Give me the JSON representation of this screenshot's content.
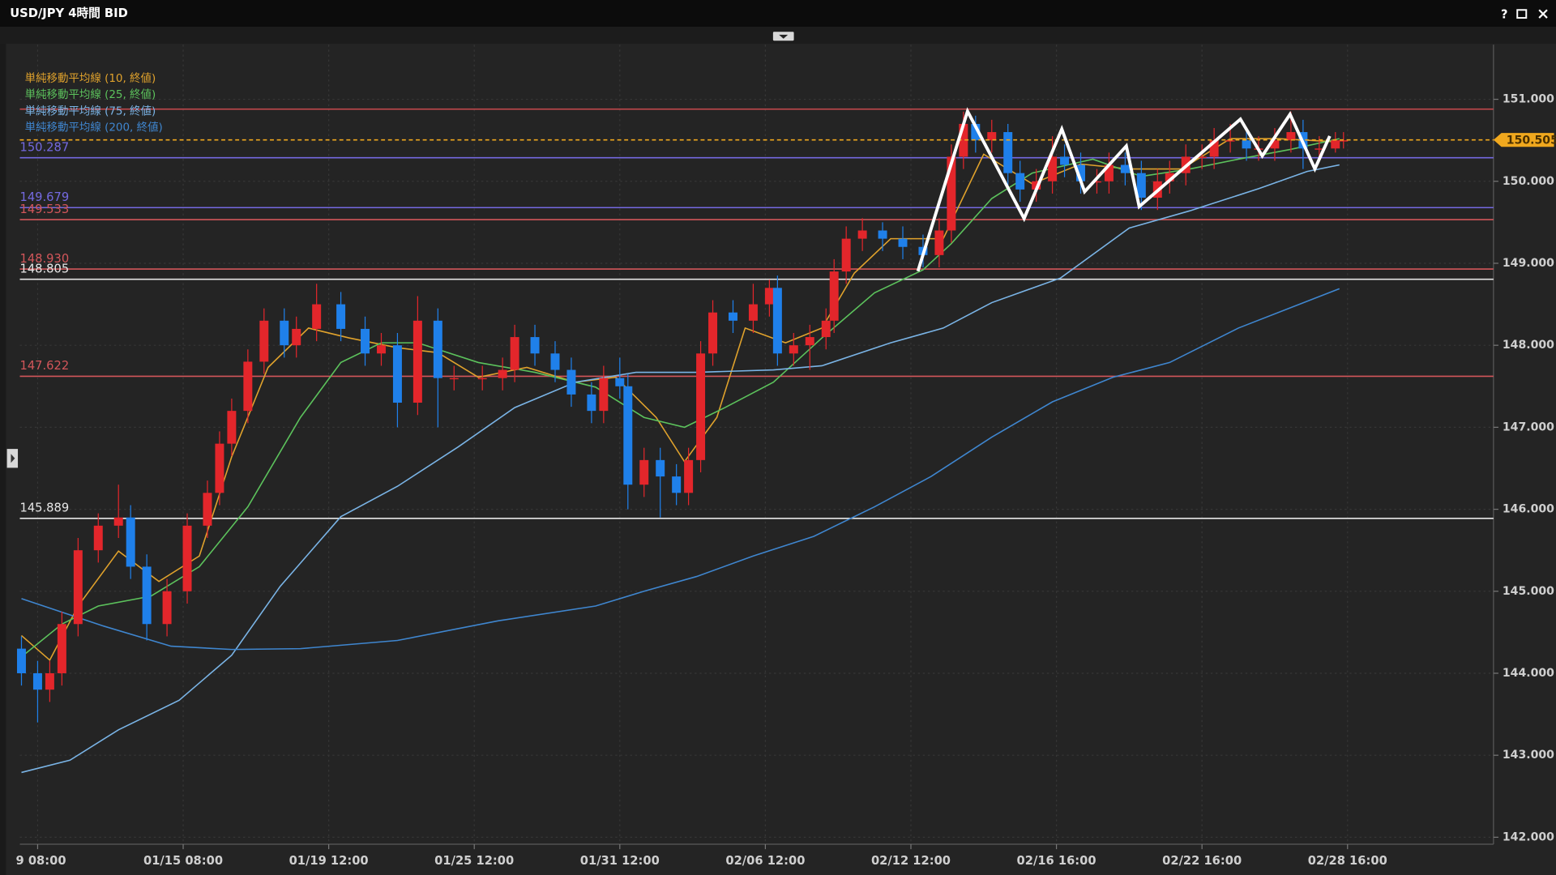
{
  "toolbar": {
    "help": "?"
  },
  "chart_data": {
    "type": "candlestick",
    "title": "USD/JPY 4時間 BID",
    "up_color": "#e3262b",
    "down_color": "#1f80ea",
    "grid": true,
    "xlim": [
      -0.4,
      364.1
    ],
    "ylim": [
      141.915,
      151.666
    ],
    "xticks": [
      {
        "value": 4,
        "label": "9 08:00"
      },
      {
        "value": 40,
        "label": "01/15 08:00"
      },
      {
        "value": 76,
        "label": "01/19 12:00"
      },
      {
        "value": 112,
        "label": "01/25 12:00"
      },
      {
        "value": 148,
        "label": "01/31 12:00"
      },
      {
        "value": 184,
        "label": "02/06 12:00"
      },
      {
        "value": 220,
        "label": "02/12 12:00"
      },
      {
        "value": 256,
        "label": "02/16 16:00"
      },
      {
        "value": 292,
        "label": "02/22 16:00"
      },
      {
        "value": 328,
        "label": "02/28 16:00"
      }
    ],
    "yticks": [
      {
        "value": 142,
        "label": "142.000"
      },
      {
        "value": 143,
        "label": "143.000"
      },
      {
        "value": 144,
        "label": "144.000"
      },
      {
        "value": 145,
        "label": "145.000"
      },
      {
        "value": 146,
        "label": "146.000"
      },
      {
        "value": 147,
        "label": "147.000"
      },
      {
        "value": 148,
        "label": "148.000"
      },
      {
        "value": 149,
        "label": "149.000"
      },
      {
        "value": 150,
        "label": "150.000"
      },
      {
        "value": 151,
        "label": "151.000"
      }
    ],
    "x": [
      0,
      4,
      7,
      10,
      14,
      19,
      24,
      27,
      31,
      36,
      41,
      46,
      49,
      52,
      56,
      60,
      65,
      68,
      73,
      79,
      85,
      89,
      93,
      98,
      103,
      107,
      114,
      119,
      122,
      127,
      132,
      136,
      141,
      144,
      148,
      150,
      154,
      158,
      162,
      165,
      168,
      171,
      176,
      181,
      185,
      187,
      191,
      195,
      199,
      201,
      204,
      208,
      213,
      218,
      223,
      227,
      230,
      233,
      236,
      240,
      244,
      247,
      251,
      255,
      258,
      262,
      266,
      269,
      273,
      277,
      281,
      284,
      288,
      292,
      295,
      299,
      303,
      306,
      310,
      314,
      317,
      321,
      325,
      327
    ],
    "open": [
      144.3,
      144.0,
      143.8,
      144.0,
      144.6,
      145.5,
      145.8,
      145.9,
      145.3,
      144.6,
      145.0,
      145.8,
      146.2,
      146.8,
      147.2,
      147.8,
      148.3,
      148.0,
      148.2,
      148.5,
      148.2,
      147.9,
      148.0,
      147.3,
      148.3,
      147.6,
      147.6,
      147.6,
      147.7,
      148.1,
      147.9,
      147.7,
      147.4,
      147.2,
      147.6,
      147.5,
      146.3,
      146.6,
      146.4,
      146.2,
      146.6,
      147.9,
      148.4,
      148.3,
      148.5,
      148.7,
      147.9,
      148.0,
      148.1,
      148.3,
      148.9,
      149.3,
      149.4,
      149.3,
      149.2,
      149.1,
      149.4,
      150.3,
      150.7,
      150.5,
      150.6,
      150.1,
      149.9,
      150.0,
      150.3,
      150.2,
      150.0,
      150.0,
      150.2,
      150.1,
      149.8,
      150.0,
      150.1,
      150.3,
      150.3,
      150.5,
      150.5,
      150.4,
      150.4,
      150.5,
      150.6,
      150.4,
      150.4,
      150.5
    ],
    "high": [
      144.45,
      144.15,
      144.15,
      144.75,
      145.65,
      145.95,
      146.3,
      146.05,
      145.45,
      145.15,
      145.95,
      146.35,
      146.95,
      147.35,
      147.95,
      148.45,
      148.45,
      148.35,
      148.75,
      148.65,
      148.35,
      148.15,
      148.15,
      148.6,
      148.45,
      147.75,
      147.75,
      147.85,
      148.25,
      148.25,
      148.05,
      147.85,
      147.55,
      147.75,
      147.85,
      147.65,
      146.75,
      146.75,
      146.55,
      146.75,
      148.05,
      148.55,
      148.55,
      148.75,
      148.8,
      148.85,
      148.15,
      148.25,
      148.45,
      149.05,
      149.45,
      149.55,
      149.5,
      149.45,
      149.35,
      149.55,
      150.45,
      150.85,
      150.8,
      150.75,
      150.7,
      150.25,
      150.15,
      150.55,
      150.45,
      150.35,
      150.15,
      150.35,
      150.35,
      150.25,
      150.15,
      150.25,
      150.45,
      150.45,
      150.65,
      150.7,
      150.65,
      150.55,
      150.65,
      150.85,
      150.75,
      150.55,
      150.6,
      150.6
    ],
    "low": [
      143.85,
      143.4,
      143.65,
      143.85,
      144.45,
      145.35,
      145.65,
      145.15,
      144.4,
      144.45,
      144.85,
      145.65,
      146.05,
      146.65,
      147.05,
      147.65,
      147.85,
      147.85,
      148.05,
      148.05,
      147.75,
      147.75,
      147.0,
      147.15,
      147.0,
      147.45,
      147.45,
      147.45,
      147.55,
      147.75,
      147.55,
      147.25,
      147.05,
      147.05,
      147.35,
      146.0,
      146.15,
      145.9,
      146.05,
      146.05,
      146.45,
      147.75,
      148.15,
      148.15,
      148.35,
      147.75,
      147.75,
      147.7,
      147.95,
      148.15,
      148.75,
      149.15,
      149.15,
      149.05,
      148.95,
      148.95,
      149.25,
      150.15,
      150.35,
      150.35,
      149.95,
      149.75,
      149.75,
      149.85,
      150.05,
      149.85,
      149.85,
      149.85,
      149.95,
      149.65,
      149.65,
      149.85,
      149.95,
      150.15,
      150.15,
      150.35,
      150.25,
      150.25,
      150.25,
      150.35,
      150.15,
      150.25,
      150.35,
      150.4
    ],
    "close": [
      144.0,
      143.8,
      144.0,
      144.6,
      145.5,
      145.8,
      145.9,
      145.3,
      144.6,
      145.0,
      145.8,
      146.2,
      146.8,
      147.2,
      147.8,
      148.3,
      148.0,
      148.2,
      148.5,
      148.2,
      147.9,
      148.0,
      147.3,
      148.3,
      147.6,
      147.6,
      147.6,
      147.7,
      148.1,
      147.9,
      147.7,
      147.4,
      147.2,
      147.6,
      147.5,
      146.3,
      146.6,
      146.4,
      146.2,
      146.6,
      147.9,
      148.4,
      148.3,
      148.5,
      148.7,
      147.9,
      148.0,
      148.1,
      148.3,
      148.9,
      149.3,
      149.4,
      149.3,
      149.2,
      149.1,
      149.4,
      150.3,
      150.7,
      150.5,
      150.6,
      150.1,
      149.9,
      150.0,
      150.3,
      150.2,
      150.0,
      150.0,
      150.2,
      150.1,
      149.8,
      150.0,
      150.1,
      150.3,
      150.3,
      150.5,
      150.5,
      150.4,
      150.4,
      150.5,
      150.6,
      150.4,
      150.4,
      150.5,
      150.5
    ],
    "series": [
      {
        "name": "単純移動平均線 (10, 終値)",
        "color": "#e0a22c",
        "x": [
          0,
          7,
          14,
          24,
          34,
          44,
          52,
          61,
          71,
          81,
          93,
          103,
          113,
          125,
          137,
          147,
          157,
          164,
          172,
          179,
          189,
          198,
          206,
          215,
          228,
          238,
          250,
          262,
          274,
          287,
          299,
          311,
          326
        ],
        "values": [
          144.46,
          144.16,
          144.82,
          145.49,
          145.12,
          145.43,
          146.64,
          147.73,
          148.21,
          148.09,
          147.97,
          147.91,
          147.61,
          147.73,
          147.55,
          147.61,
          147.12,
          146.58,
          147.12,
          148.21,
          148.03,
          148.21,
          148.88,
          149.3,
          149.3,
          150.33,
          149.97,
          150.21,
          150.15,
          150.15,
          150.52,
          150.52,
          150.48
        ]
      },
      {
        "name": "単純移動平均線 (25, 終値)",
        "color": "#5cc25c",
        "x": [
          0,
          10,
          19,
          32,
          44,
          56,
          69,
          79,
          89,
          98,
          113,
          127,
          142,
          154,
          164,
          174,
          186,
          198,
          211,
          223,
          230,
          240,
          250,
          265,
          277,
          289,
          301,
          314,
          326
        ],
        "values": [
          144.2,
          144.6,
          144.82,
          144.94,
          145.3,
          146.03,
          147.12,
          147.79,
          148.03,
          148.03,
          147.79,
          147.67,
          147.49,
          147.12,
          147.0,
          147.24,
          147.55,
          148.09,
          148.64,
          148.92,
          149.24,
          149.79,
          150.1,
          150.27,
          150.06,
          150.15,
          150.27,
          150.39,
          150.52
        ]
      },
      {
        "name": "単純移動平均線 (75, 終値)",
        "color": "#7ab4e6",
        "x": [
          0,
          12,
          24,
          39,
          52,
          64,
          79,
          93,
          108,
          122,
          137,
          152,
          167,
          186,
          198,
          215,
          228,
          240,
          257,
          274,
          289,
          306,
          318,
          326
        ],
        "values": [
          142.79,
          142.94,
          143.31,
          143.67,
          144.22,
          145.06,
          145.91,
          146.28,
          146.76,
          147.24,
          147.55,
          147.67,
          147.67,
          147.7,
          147.75,
          148.03,
          148.21,
          148.52,
          148.82,
          149.43,
          149.64,
          149.91,
          150.12,
          150.2
        ]
      },
      {
        "name": "単純移動平均線 (200, 終値)",
        "color": "#3f86cf",
        "x": [
          0,
          20,
          37,
          52,
          69,
          93,
          118,
          142,
          154,
          167,
          181,
          196,
          211,
          225,
          240,
          255,
          270,
          284,
          301,
          314,
          326
        ],
        "values": [
          144.91,
          144.58,
          144.33,
          144.29,
          144.3,
          144.4,
          144.64,
          144.82,
          145.0,
          145.18,
          145.43,
          145.67,
          146.03,
          146.4,
          146.88,
          147.31,
          147.61,
          147.79,
          148.21,
          148.46,
          148.69
        ]
      }
    ],
    "levels": [
      {
        "value": 150.88,
        "color": "#c2484c"
      },
      {
        "value": 150.287,
        "label": "150.287",
        "color": "#7469e0"
      },
      {
        "value": 149.679,
        "label": "149.679",
        "color": "#7469e0"
      },
      {
        "value": 149.533,
        "label": "149.533",
        "color": "#d2565a"
      },
      {
        "value": 148.93,
        "label": "148.930",
        "color": "#d2565a"
      },
      {
        "value": 148.805,
        "label": "148.805",
        "color": "#e6e6e6"
      },
      {
        "value": 147.622,
        "label": "147.622",
        "color": "#d2565a"
      },
      {
        "value": 145.889,
        "label": "145.889",
        "color": "#e6e6e6"
      }
    ],
    "last_price": {
      "value": 150.505,
      "color": "#f0a81e"
    }
  }
}
